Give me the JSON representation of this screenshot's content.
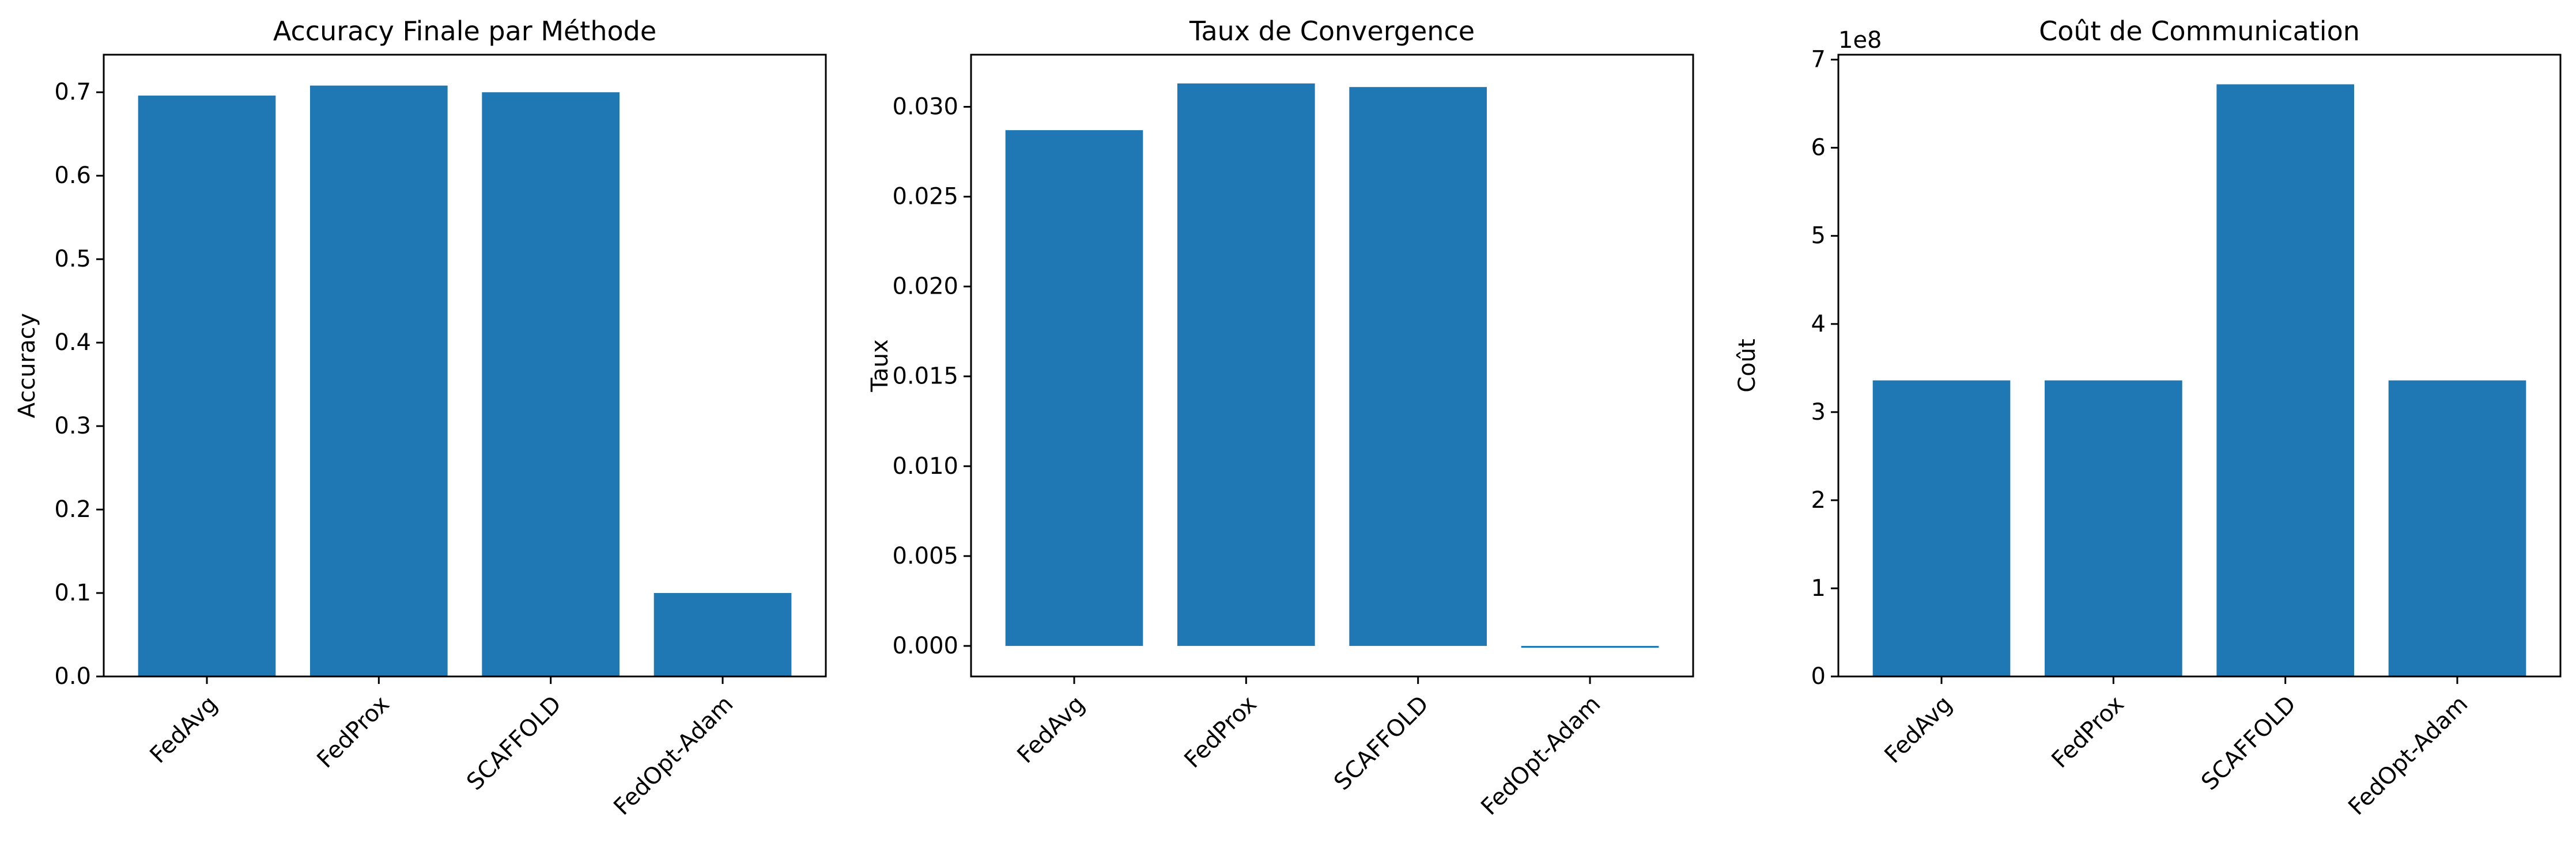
{
  "chart_data": [
    {
      "type": "bar",
      "title": "Accuracy Finale par Méthode",
      "xlabel": "",
      "ylabel": "Accuracy",
      "categories": [
        "FedAvg",
        "FedProx",
        "SCAFFOLD",
        "FedOpt-Adam"
      ],
      "values": [
        0.696,
        0.708,
        0.7,
        0.1
      ],
      "ylim": [
        0,
        0.745
      ],
      "yticks": [
        0.0,
        0.1,
        0.2,
        0.3,
        0.4,
        0.5,
        0.6,
        0.7
      ],
      "ytick_labels": [
        "0.0",
        "0.1",
        "0.2",
        "0.3",
        "0.4",
        "0.5",
        "0.6",
        "0.7"
      ],
      "color": "#1f77b4",
      "grid": false
    },
    {
      "type": "bar",
      "title": "Taux de Convergence",
      "xlabel": "",
      "ylabel": "Taux",
      "categories": [
        "FedAvg",
        "FedProx",
        "SCAFFOLD",
        "FedOpt-Adam"
      ],
      "values": [
        0.0287,
        0.0313,
        0.0311,
        -0.0001
      ],
      "ylim": [
        -0.0017,
        0.0329
      ],
      "yticks": [
        0.0,
        0.005,
        0.01,
        0.015,
        0.02,
        0.025,
        0.03
      ],
      "ytick_labels": [
        "0.000",
        "0.005",
        "0.010",
        "0.015",
        "0.020",
        "0.025",
        "0.030"
      ],
      "color": "#1f77b4",
      "grid": false
    },
    {
      "type": "bar",
      "title": "Coût de Communication",
      "xlabel": "",
      "ylabel": "Coût",
      "offset_label": "1e8",
      "categories": [
        "FedAvg",
        "FedProx",
        "SCAFFOLD",
        "FedOpt-Adam"
      ],
      "values": [
        336000000,
        336000000,
        672000000,
        336000000
      ],
      "ylim": [
        0,
        705600000
      ],
      "yticks": [
        0,
        100000000,
        200000000,
        300000000,
        400000000,
        500000000,
        600000000,
        700000000
      ],
      "ytick_labels": [
        "0",
        "1",
        "2",
        "3",
        "4",
        "5",
        "6",
        "7"
      ],
      "color": "#1f77b4",
      "grid": false
    }
  ]
}
